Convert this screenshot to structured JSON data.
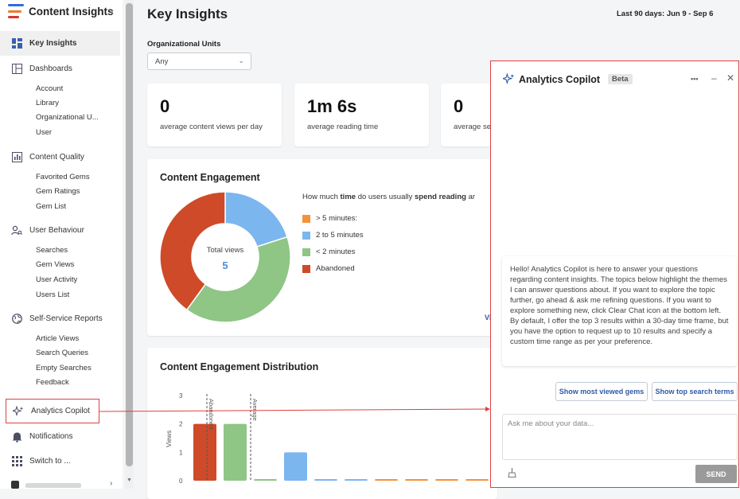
{
  "app": {
    "title": "Content Insights"
  },
  "sidebar": {
    "key_insights": "Key Insights",
    "dashboards": {
      "label": "Dashboards",
      "items": [
        "Account",
        "Library",
        "Organizational U...",
        "User"
      ]
    },
    "content_quality": {
      "label": "Content Quality",
      "items": [
        "Favorited Gems",
        "Gem Ratings",
        "Gem List"
      ]
    },
    "user_behaviour": {
      "label": "User Behaviour",
      "items": [
        "Searches",
        "Gem Views",
        "User Activity",
        "Users List"
      ]
    },
    "self_service": {
      "label": "Self-Service Reports",
      "items": [
        "Article Views",
        "Search Queries",
        "Empty Searches",
        "Feedback"
      ]
    },
    "analytics_copilot": "Analytics Copilot",
    "notifications": "Notifications",
    "switch_to": "Switch to ..."
  },
  "header": {
    "title": "Key Insights",
    "date_range": "Last 90 days: Jun 9  - Sep 6"
  },
  "filters": {
    "ou_label": "Organizational Units",
    "ou_value": "Any"
  },
  "stats": [
    {
      "value": "0",
      "label": "average content views per day"
    },
    {
      "value": "1m 6s",
      "label": "average reading time"
    },
    {
      "value": "0",
      "label": "average se"
    }
  ],
  "engagement": {
    "title": "Content Engagement",
    "question_prefix": "How much ",
    "question_b1": "time",
    "question_mid": " do users usually ",
    "question_b2": "spend reading",
    "question_suffix": " ar",
    "total_label": "Total views",
    "total_value": "5",
    "legend": [
      {
        "label": "> 5 minutes:",
        "color": "#f4923a"
      },
      {
        "label": "2 to 5 minutes",
        "color": "#7bb6ef"
      },
      {
        "label": "< 2 minutes",
        "color": "#8fc585"
      },
      {
        "label": "Abandoned",
        "color": "#cf4a28"
      }
    ],
    "view_link": "VIE"
  },
  "chart_data": {
    "type": "pie",
    "title": "Content Engagement",
    "categories": [
      "> 5 minutes",
      "2 to 5 minutes",
      "< 2 minutes",
      "Abandoned"
    ],
    "values": [
      0,
      1,
      2,
      2
    ],
    "colors": [
      "#f4923a",
      "#7bb6ef",
      "#8fc585",
      "#cf4a28"
    ]
  },
  "distribution": {
    "title": "Content Engagement Distribution",
    "ylabel": "Views",
    "yticks": [
      "3",
      "2",
      "1",
      "0"
    ],
    "ylim": [
      0,
      3
    ],
    "marker_abandoned": "Abandoned",
    "marker_average": "Average",
    "bars": [
      {
        "value": 2,
        "color": "#cf4a28"
      },
      {
        "value": 2,
        "color": "#8fc585"
      },
      {
        "value": 0.05,
        "color": "#8fc585"
      },
      {
        "value": 1,
        "color": "#7bb6ef"
      },
      {
        "value": 0.05,
        "color": "#7bb6ef"
      },
      {
        "value": 0.05,
        "color": "#7bb6ef"
      },
      {
        "value": 0.05,
        "color": "#f4923a"
      },
      {
        "value": 0.05,
        "color": "#f4923a"
      },
      {
        "value": 0.05,
        "color": "#f4923a"
      },
      {
        "value": 0.05,
        "color": "#f4923a"
      }
    ]
  },
  "copilot": {
    "title": "Analytics Copilot",
    "badge": "Beta",
    "more_icon": "•••",
    "minimize_icon": "–",
    "close_icon": "✕",
    "message": "Hello! Analytics Copilot is here to answer your questions regarding content insights. The topics below highlight the themes I can answer questions about. If you want to explore the topic further, go ahead & ask me refining questions. If you want to explore something new, click Clear Chat icon at the bottom left. By default, I offer the top 3 results within a 30-day time frame, but you have the option to request up to 10 results and specify a custom time range as per your preference.",
    "chip1": "Show most viewed gems",
    "chip2": "Show top search terms",
    "input_placeholder": "Ask me about your data...",
    "send": "SEND"
  }
}
